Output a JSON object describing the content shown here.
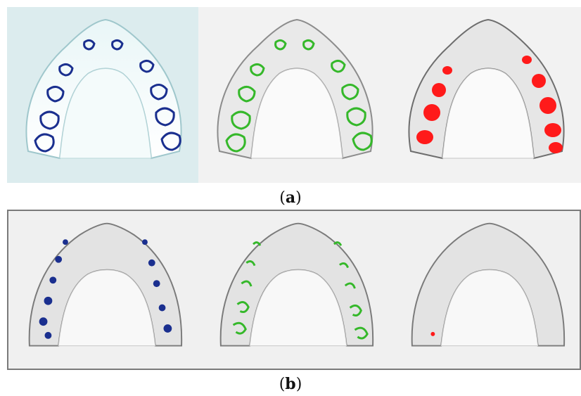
{
  "figure": {
    "panel_a": {
      "label": "a"
    },
    "panel_b": {
      "label": "b"
    }
  },
  "colors": {
    "marker_blue": "#1a2f8f",
    "marker_green": "#35b82a",
    "marker_red": "#ff1a1a",
    "tint_cyan": "#cfe9ec",
    "model_gray": "#e6e6e6"
  },
  "views_a": [
    {
      "name": "blue-markers",
      "tint": "cyan"
    },
    {
      "name": "green-markers",
      "tint": "gray"
    },
    {
      "name": "red-markers",
      "tint": "gray"
    }
  ],
  "views_b": [
    {
      "name": "blue-markers",
      "tint": "gray"
    },
    {
      "name": "green-markers",
      "tint": "gray"
    },
    {
      "name": "red-markers",
      "tint": "gray"
    }
  ]
}
